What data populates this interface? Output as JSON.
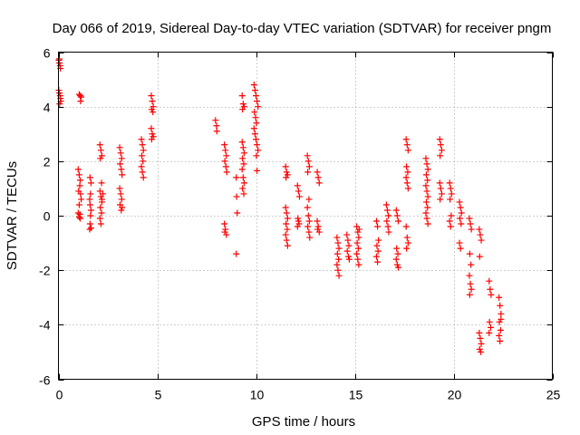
{
  "chart_data": {
    "type": "scatter",
    "title": "Day 066 of 2019, Sidereal Day-to-day VTEC variation (SDTVAR) for receiver pngm",
    "xlabel": "GPS time / hours",
    "ylabel": "SDTVAR / TECUs",
    "xlim": [
      0,
      25
    ],
    "ylim": [
      -6,
      6
    ],
    "xticks": [
      0,
      5,
      10,
      15,
      20,
      25
    ],
    "yticks": [
      -6,
      -4,
      -2,
      0,
      2,
      4,
      6
    ],
    "xtick_labels": [
      "0",
      "5",
      "10",
      "15",
      "20",
      "25"
    ],
    "ytick_labels": [
      "-6",
      "-4",
      "-2",
      "0",
      "2",
      "4",
      "6"
    ],
    "grid": true,
    "marker": "plus",
    "color": "#ff0000",
    "series": [
      {
        "name": "SDTVAR",
        "points": [
          [
            0.02,
            5.7
          ],
          [
            0.05,
            5.6
          ],
          [
            0.08,
            5.5
          ],
          [
            0.1,
            5.4
          ],
          [
            0.04,
            5.75
          ],
          [
            0.02,
            4.6
          ],
          [
            0.05,
            4.5
          ],
          [
            0.08,
            4.4
          ],
          [
            0.1,
            4.3
          ],
          [
            0.12,
            4.2
          ],
          [
            0.06,
            4.1
          ],
          [
            1.05,
            4.45
          ],
          [
            1.1,
            4.4
          ],
          [
            1.15,
            4.35
          ],
          [
            1.12,
            4.2
          ],
          [
            1.0,
            1.7
          ],
          [
            1.05,
            1.5
          ],
          [
            1.1,
            1.3
          ],
          [
            1.08,
            1.1
          ],
          [
            1.02,
            0.9
          ],
          [
            1.12,
            0.8
          ],
          [
            1.15,
            0.6
          ],
          [
            1.05,
            0.4
          ],
          [
            1.0,
            0.1
          ],
          [
            1.05,
            -0.05
          ],
          [
            1.1,
            -0.1
          ],
          [
            1.08,
            0.05
          ],
          [
            1.6,
            1.4
          ],
          [
            1.65,
            1.2
          ],
          [
            1.62,
            0.8
          ],
          [
            1.58,
            0.6
          ],
          [
            1.6,
            0.4
          ],
          [
            1.65,
            0.2
          ],
          [
            1.62,
            0.0
          ],
          [
            1.6,
            -0.3
          ],
          [
            1.65,
            -0.45
          ],
          [
            1.58,
            -0.5
          ],
          [
            2.1,
            2.6
          ],
          [
            2.15,
            2.4
          ],
          [
            2.2,
            2.2
          ],
          [
            2.12,
            2.1
          ],
          [
            2.18,
            1.2
          ],
          [
            2.1,
            0.9
          ],
          [
            2.15,
            0.7
          ],
          [
            2.2,
            0.5
          ],
          [
            2.12,
            0.3
          ],
          [
            2.18,
            0.1
          ],
          [
            2.1,
            -0.1
          ],
          [
            2.15,
            -0.3
          ],
          [
            2.2,
            0.6
          ],
          [
            2.25,
            0.8
          ],
          [
            3.1,
            2.5
          ],
          [
            3.15,
            2.3
          ],
          [
            3.2,
            2.1
          ],
          [
            3.12,
            1.9
          ],
          [
            3.18,
            1.7
          ],
          [
            3.22,
            1.5
          ],
          [
            3.1,
            1.0
          ],
          [
            3.15,
            0.8
          ],
          [
            3.2,
            0.6
          ],
          [
            3.12,
            0.4
          ],
          [
            3.18,
            0.2
          ],
          [
            3.22,
            0.3
          ],
          [
            4.2,
            2.8
          ],
          [
            4.25,
            2.6
          ],
          [
            4.3,
            2.4
          ],
          [
            4.22,
            2.2
          ],
          [
            4.28,
            2.0
          ],
          [
            4.2,
            1.8
          ],
          [
            4.25,
            1.6
          ],
          [
            4.3,
            1.4
          ],
          [
            4.7,
            4.4
          ],
          [
            4.75,
            4.2
          ],
          [
            4.8,
            4.0
          ],
          [
            4.72,
            3.9
          ],
          [
            4.78,
            3.8
          ],
          [
            4.7,
            3.2
          ],
          [
            4.75,
            3.0
          ],
          [
            4.8,
            2.9
          ],
          [
            4.72,
            2.8
          ],
          [
            7.95,
            3.5
          ],
          [
            8.0,
            3.3
          ],
          [
            8.02,
            3.1
          ],
          [
            8.4,
            2.6
          ],
          [
            8.45,
            2.4
          ],
          [
            8.5,
            2.2
          ],
          [
            8.42,
            2.0
          ],
          [
            8.48,
            1.8
          ],
          [
            8.52,
            1.6
          ],
          [
            8.4,
            -0.3
          ],
          [
            8.45,
            -0.5
          ],
          [
            8.5,
            -0.7
          ],
          [
            8.42,
            -0.6
          ],
          [
            9.0,
            1.4
          ],
          [
            9.02,
            0.7
          ],
          [
            9.05,
            0.1
          ],
          [
            9.0,
            -1.4
          ],
          [
            9.3,
            4.4
          ],
          [
            9.35,
            4.1
          ],
          [
            9.4,
            4.0
          ],
          [
            9.32,
            3.9
          ],
          [
            9.3,
            2.7
          ],
          [
            9.35,
            2.5
          ],
          [
            9.4,
            2.3
          ],
          [
            9.32,
            2.1
          ],
          [
            9.38,
            1.9
          ],
          [
            9.3,
            1.7
          ],
          [
            9.35,
            1.4
          ],
          [
            9.4,
            1.2
          ],
          [
            9.32,
            1.0
          ],
          [
            9.38,
            0.8
          ],
          [
            9.9,
            4.8
          ],
          [
            9.95,
            4.6
          ],
          [
            10.0,
            4.4
          ],
          [
            10.05,
            4.2
          ],
          [
            10.1,
            4.0
          ],
          [
            9.92,
            3.8
          ],
          [
            9.98,
            3.6
          ],
          [
            10.02,
            3.4
          ],
          [
            9.9,
            3.2
          ],
          [
            9.95,
            3.0
          ],
          [
            10.0,
            2.8
          ],
          [
            10.05,
            2.6
          ],
          [
            10.1,
            2.4
          ],
          [
            10.02,
            2.2
          ],
          [
            10.05,
            1.65
          ],
          [
            11.5,
            1.8
          ],
          [
            11.55,
            1.6
          ],
          [
            11.6,
            1.5
          ],
          [
            11.52,
            1.4
          ],
          [
            11.5,
            0.3
          ],
          [
            11.55,
            0.1
          ],
          [
            11.6,
            -0.1
          ],
          [
            11.52,
            -0.3
          ],
          [
            11.58,
            -0.5
          ],
          [
            11.5,
            -0.7
          ],
          [
            11.55,
            -0.9
          ],
          [
            11.6,
            -1.1
          ],
          [
            12.1,
            1.1
          ],
          [
            12.15,
            0.9
          ],
          [
            12.2,
            0.7
          ],
          [
            12.12,
            -0.1
          ],
          [
            12.18,
            -0.3
          ],
          [
            12.1,
            -0.4
          ],
          [
            12.15,
            -0.2
          ],
          [
            12.6,
            2.2
          ],
          [
            12.65,
            2.0
          ],
          [
            12.7,
            1.8
          ],
          [
            12.62,
            1.6
          ],
          [
            12.68,
            0.6
          ],
          [
            12.6,
            0.3
          ],
          [
            12.65,
            0.0
          ],
          [
            12.7,
            -0.2
          ],
          [
            12.62,
            -0.4
          ],
          [
            12.68,
            -0.6
          ],
          [
            12.72,
            -0.8
          ],
          [
            13.1,
            1.6
          ],
          [
            13.15,
            1.4
          ],
          [
            13.2,
            1.2
          ],
          [
            13.1,
            -0.2
          ],
          [
            13.15,
            -0.4
          ],
          [
            13.2,
            -0.6
          ],
          [
            13.12,
            -0.5
          ],
          [
            14.1,
            -0.8
          ],
          [
            14.15,
            -1.0
          ],
          [
            14.2,
            -1.2
          ],
          [
            14.12,
            -1.4
          ],
          [
            14.18,
            -1.6
          ],
          [
            14.1,
            -1.8
          ],
          [
            14.15,
            -2.0
          ],
          [
            14.2,
            -2.2
          ],
          [
            14.6,
            -0.7
          ],
          [
            14.65,
            -0.9
          ],
          [
            14.7,
            -1.1
          ],
          [
            14.62,
            -1.3
          ],
          [
            14.68,
            -1.5
          ],
          [
            14.72,
            -1.6
          ],
          [
            15.1,
            -0.4
          ],
          [
            15.15,
            -0.6
          ],
          [
            15.2,
            -0.8
          ],
          [
            15.12,
            -1.0
          ],
          [
            15.18,
            -1.2
          ],
          [
            15.1,
            -1.4
          ],
          [
            15.15,
            -1.6
          ],
          [
            15.2,
            -1.8
          ],
          [
            15.22,
            -0.5
          ],
          [
            16.1,
            -0.2
          ],
          [
            16.15,
            -0.4
          ],
          [
            16.2,
            -0.9
          ],
          [
            16.12,
            -1.1
          ],
          [
            16.18,
            -1.3
          ],
          [
            16.1,
            -1.5
          ],
          [
            16.15,
            -1.7
          ],
          [
            16.6,
            0.4
          ],
          [
            16.65,
            0.2
          ],
          [
            16.7,
            0.0
          ],
          [
            16.62,
            -0.2
          ],
          [
            16.68,
            -0.4
          ],
          [
            16.72,
            -0.6
          ],
          [
            17.1,
            0.2
          ],
          [
            17.15,
            0.0
          ],
          [
            17.2,
            -0.2
          ],
          [
            17.12,
            -1.2
          ],
          [
            17.18,
            -1.4
          ],
          [
            17.1,
            -1.6
          ],
          [
            17.15,
            -1.8
          ],
          [
            17.2,
            -1.9
          ],
          [
            17.6,
            2.8
          ],
          [
            17.65,
            2.6
          ],
          [
            17.7,
            2.4
          ],
          [
            17.62,
            1.8
          ],
          [
            17.68,
            1.6
          ],
          [
            17.6,
            1.4
          ],
          [
            17.65,
            1.2
          ],
          [
            17.7,
            1.0
          ],
          [
            17.6,
            -0.4
          ],
          [
            17.65,
            -0.8
          ],
          [
            17.7,
            -1.0
          ],
          [
            17.62,
            -1.2
          ],
          [
            18.6,
            2.1
          ],
          [
            18.65,
            1.9
          ],
          [
            18.7,
            1.7
          ],
          [
            18.62,
            1.5
          ],
          [
            18.68,
            1.3
          ],
          [
            18.6,
            1.1
          ],
          [
            18.65,
            0.9
          ],
          [
            18.7,
            0.7
          ],
          [
            18.62,
            0.5
          ],
          [
            18.68,
            0.3
          ],
          [
            18.6,
            0.1
          ],
          [
            18.65,
            -0.1
          ],
          [
            18.7,
            -0.3
          ],
          [
            19.3,
            2.8
          ],
          [
            19.35,
            2.6
          ],
          [
            19.4,
            2.4
          ],
          [
            19.32,
            2.2
          ],
          [
            19.3,
            1.2
          ],
          [
            19.35,
            1.0
          ],
          [
            19.4,
            0.8
          ],
          [
            19.32,
            0.6
          ],
          [
            19.8,
            1.2
          ],
          [
            19.85,
            1.0
          ],
          [
            19.9,
            0.8
          ],
          [
            19.82,
            0.6
          ],
          [
            19.88,
            0.0
          ],
          [
            19.8,
            -0.2
          ],
          [
            19.85,
            -0.4
          ],
          [
            20.3,
            0.5
          ],
          [
            20.35,
            0.3
          ],
          [
            20.4,
            0.1
          ],
          [
            20.32,
            -0.1
          ],
          [
            20.38,
            -0.3
          ],
          [
            20.3,
            -1.0
          ],
          [
            20.35,
            -1.2
          ],
          [
            20.8,
            -0.1
          ],
          [
            20.85,
            -0.3
          ],
          [
            20.9,
            -0.5
          ],
          [
            20.82,
            -1.4
          ],
          [
            20.88,
            -1.8
          ],
          [
            20.8,
            -2.2
          ],
          [
            20.85,
            -2.5
          ],
          [
            20.9,
            -2.7
          ],
          [
            20.82,
            -2.9
          ],
          [
            21.3,
            -0.5
          ],
          [
            21.35,
            -0.7
          ],
          [
            21.4,
            -0.9
          ],
          [
            21.32,
            -1.5
          ],
          [
            21.3,
            -4.3
          ],
          [
            21.35,
            -4.5
          ],
          [
            21.4,
            -4.7
          ],
          [
            21.32,
            -4.9
          ],
          [
            21.38,
            -5.0
          ],
          [
            21.8,
            -2.4
          ],
          [
            21.85,
            -2.7
          ],
          [
            21.9,
            -2.9
          ],
          [
            21.82,
            -3.9
          ],
          [
            21.88,
            -4.1
          ],
          [
            21.8,
            -4.3
          ],
          [
            22.3,
            -3.0
          ],
          [
            22.35,
            -3.3
          ],
          [
            22.4,
            -3.6
          ],
          [
            22.32,
            -3.9
          ],
          [
            22.38,
            -4.2
          ],
          [
            22.3,
            -4.4
          ],
          [
            22.35,
            -4.6
          ],
          [
            22.4,
            -3.8
          ]
        ]
      }
    ]
  }
}
